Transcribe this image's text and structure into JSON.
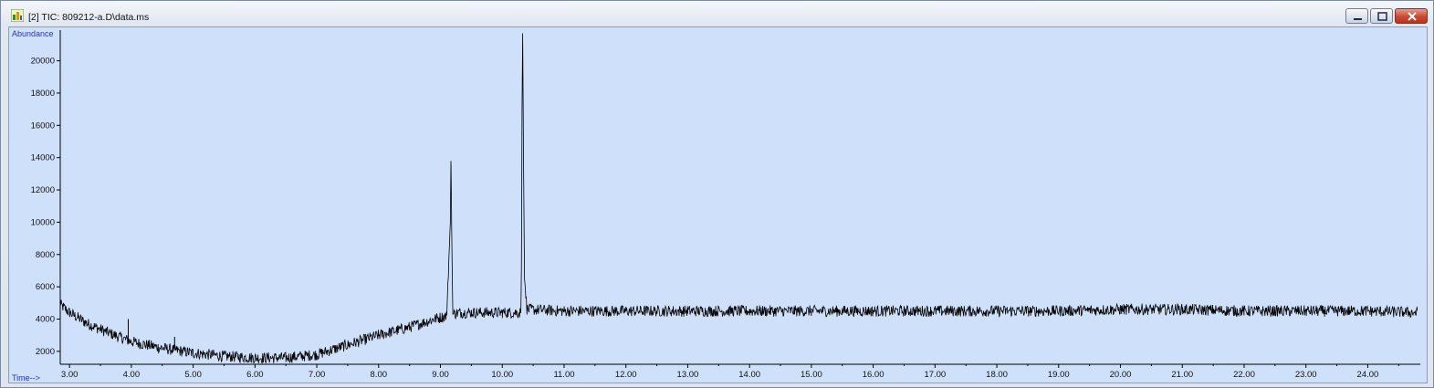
{
  "window": {
    "title": "[2] TIC: 809212-a.D\\data.ms",
    "icon": "chromatogram-app-icon",
    "buttons": [
      "minimize-icon",
      "restore-icon",
      "close-icon"
    ]
  },
  "colors": {
    "plot_background": "#cfe0fb",
    "trace": "#000000",
    "axis_text": "#2233cc",
    "tick_text": "#111111"
  },
  "chart_data": {
    "type": "line",
    "title": "",
    "xlabel": "Time-->",
    "ylabel": "Abundance",
    "xlim": [
      2.85,
      24.85
    ],
    "ylim": [
      1200,
      21900
    ],
    "x_ticks": [
      3,
      4,
      5,
      6,
      7,
      8,
      9,
      10,
      11,
      12,
      13,
      14,
      15,
      16,
      17,
      18,
      19,
      20,
      21,
      22,
      23,
      24
    ],
    "x_tick_labels": [
      "3.00",
      "4.00",
      "5.00",
      "6.00",
      "7.00",
      "8.00",
      "9.00",
      "10.00",
      "11.00",
      "12.00",
      "13.00",
      "14.00",
      "15.00",
      "16.00",
      "17.00",
      "18.00",
      "19.00",
      "20.00",
      "21.00",
      "22.00",
      "23.00",
      "24.00"
    ],
    "y_ticks": [
      2000,
      4000,
      6000,
      8000,
      10000,
      12000,
      14000,
      16000,
      18000,
      20000
    ],
    "y_tick_labels": [
      "2000",
      "4000",
      "6000",
      "8000",
      "10000",
      "12000",
      "14000",
      "16000",
      "18000",
      "20000"
    ],
    "series": [
      {
        "x": [
          2.85,
          3.0,
          3.3,
          3.6,
          4.0,
          4.5,
          5.0,
          5.5,
          6.0,
          6.5,
          7.0,
          7.5,
          8.0,
          8.5,
          8.9,
          9.1,
          9.16,
          9.17,
          9.18,
          9.2,
          9.3,
          10.0,
          10.3,
          10.31,
          10.32,
          10.33,
          10.34,
          10.36,
          10.4,
          11.0,
          12.0,
          13.0,
          14.0,
          15.0,
          16.0,
          17.0,
          18.0,
          19.0,
          20.0,
          21.0,
          22.0,
          23.0,
          24.0,
          24.8
        ],
        "y": [
          4900,
          4400,
          3700,
          3200,
          2600,
          2200,
          1900,
          1700,
          1600,
          1600,
          1800,
          2400,
          3000,
          3500,
          4000,
          4200,
          10000,
          13800,
          10200,
          4300,
          4400,
          4400,
          4400,
          7000,
          17000,
          21700,
          16000,
          6500,
          4600,
          4500,
          4500,
          4500,
          4500,
          4500,
          4500,
          4500,
          4500,
          4500,
          4600,
          4600,
          4500,
          4500,
          4500,
          4400
        ]
      }
    ],
    "grid": false,
    "legend": "none"
  }
}
